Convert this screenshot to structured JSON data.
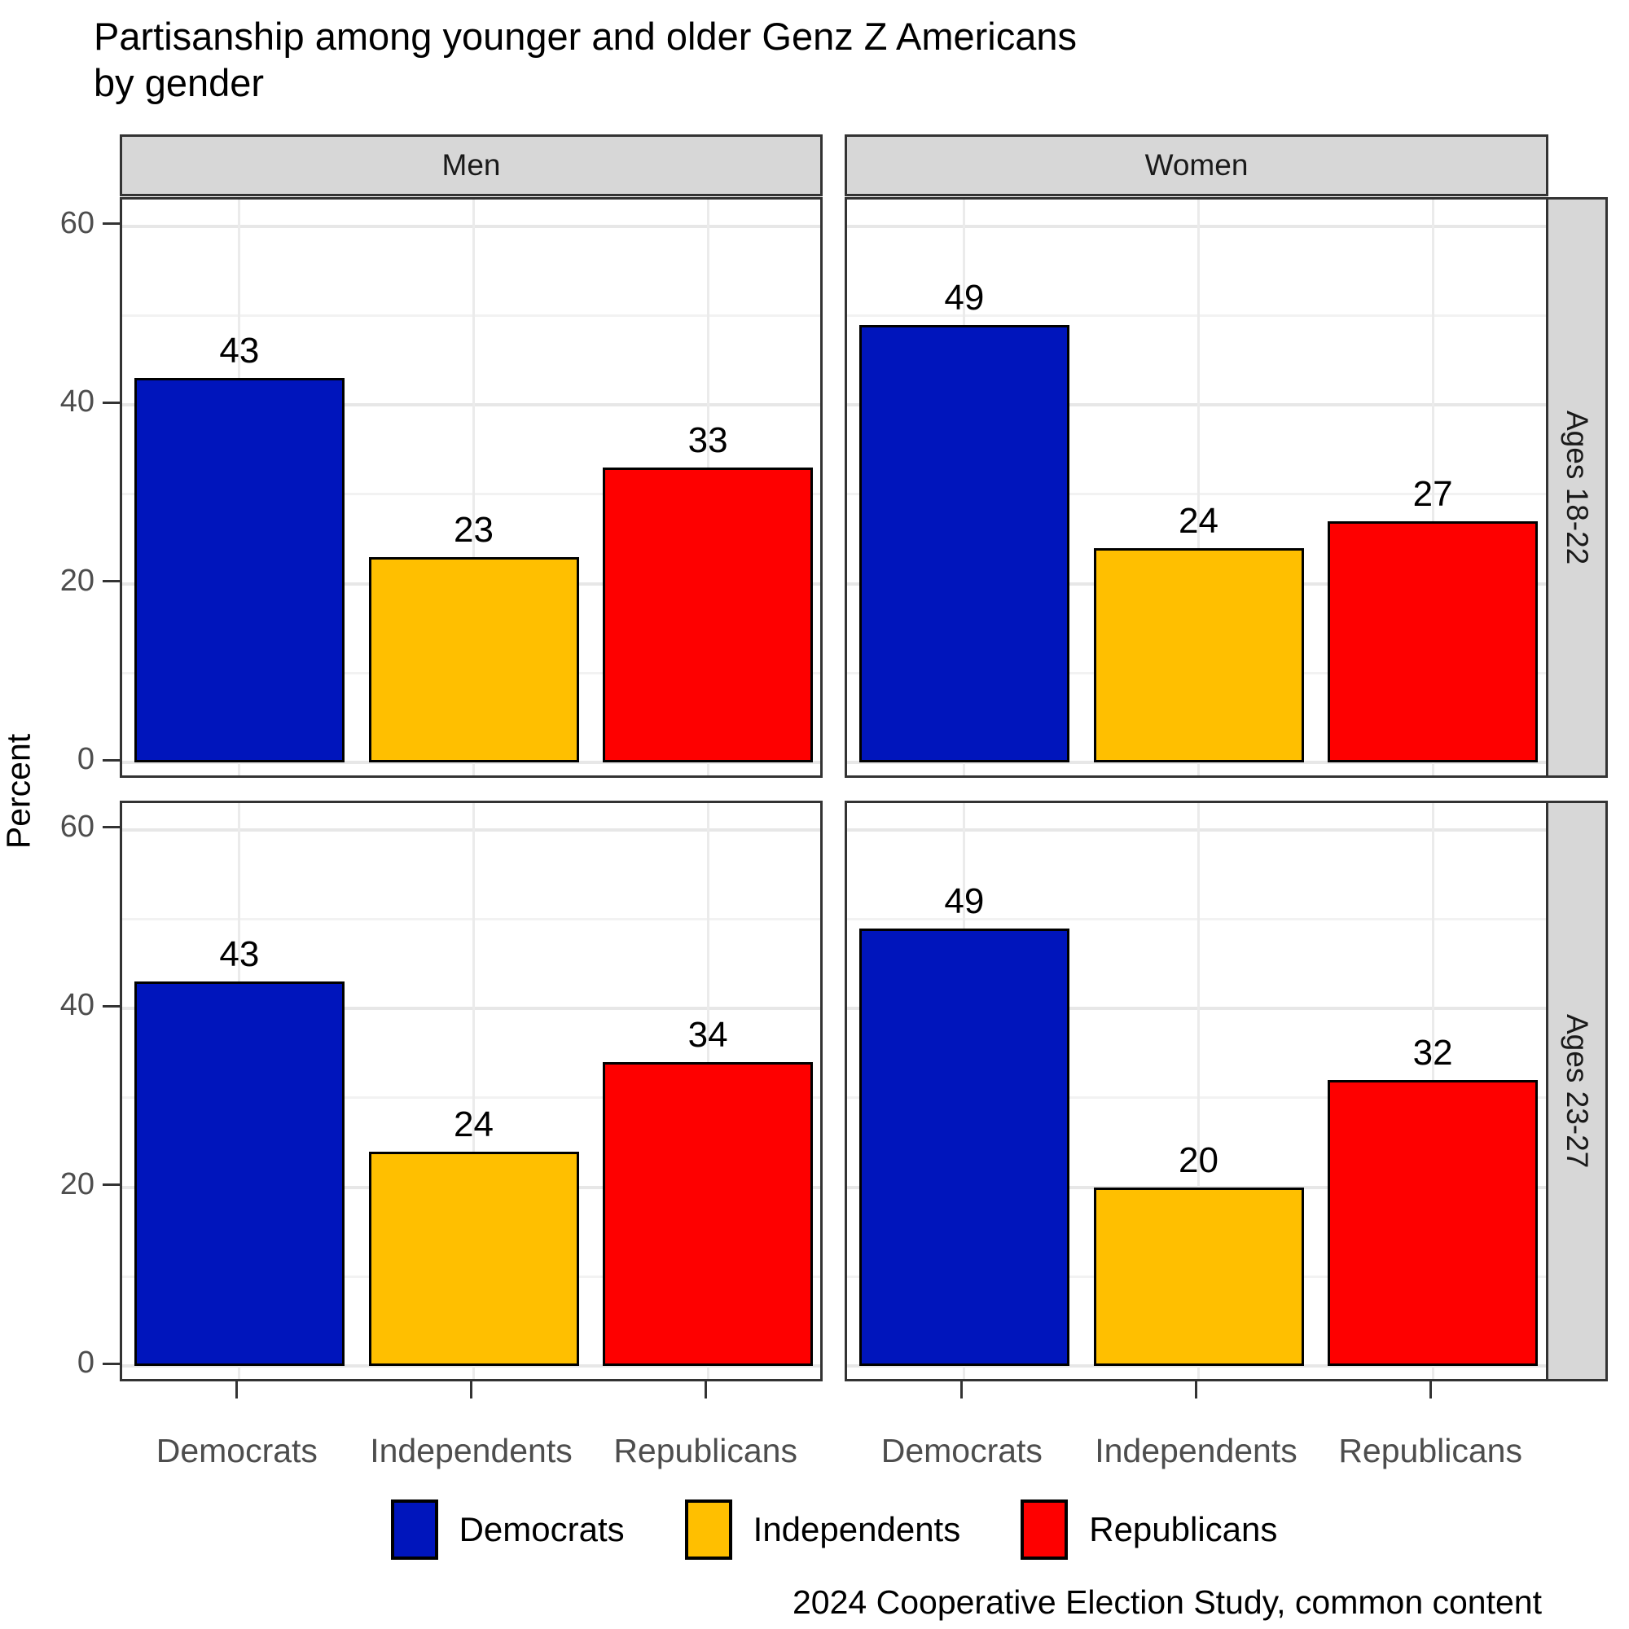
{
  "title": {
    "line1": "Partisanship among younger and older Genz Z Americans",
    "line2": "by gender"
  },
  "facets": {
    "columns": [
      "Men",
      "Women"
    ],
    "rows": [
      "Ages 18-22",
      "Ages 23-27"
    ]
  },
  "axis": {
    "y_label": "Percent",
    "y_ticks": [
      0,
      20,
      40,
      60
    ],
    "x_categories": [
      "Democrats",
      "Independents",
      "Republicans"
    ]
  },
  "legend": [
    {
      "label": "Democrats",
      "color": "#0015BC"
    },
    {
      "label": "Independents",
      "color": "#FFBF00"
    },
    {
      "label": "Republicans",
      "color": "#FE0000"
    }
  ],
  "caption": "2024 Cooperative Election Study, common content",
  "colors": {
    "strip_fill": "#D7D7D7",
    "panel_border": "#333333",
    "grid_major": "#E7E7E7",
    "grid_minor": "#F2F2F2",
    "axis_text": "#4D4D4D",
    "bar_outline": "#000000"
  },
  "chart_data": {
    "type": "bar",
    "title": "Partisanship among younger and older Genz Z Americans by gender",
    "categories": [
      "Democrats",
      "Independents",
      "Republicans"
    ],
    "ylabel": "Percent",
    "ylim": [
      0,
      63
    ],
    "y_major_ticks": [
      0,
      20,
      40,
      60
    ],
    "y_minor_gridlines": [
      10,
      30,
      50
    ],
    "grid": true,
    "legend_position": "bottom",
    "facet_layout": "columns: gender, rows: age group",
    "panels": [
      {
        "column": "Men",
        "row": "Ages 18-22",
        "series": "by party",
        "values": [
          43,
          23,
          33
        ]
      },
      {
        "column": "Women",
        "row": "Ages 18-22",
        "series": "by party",
        "values": [
          49,
          24,
          27
        ]
      },
      {
        "column": "Men",
        "row": "Ages 23-27",
        "series": "by party",
        "values": [
          43,
          24,
          34
        ]
      },
      {
        "column": "Women",
        "row": "Ages 23-27",
        "series": "by party",
        "values": [
          49,
          20,
          32
        ]
      }
    ]
  }
}
